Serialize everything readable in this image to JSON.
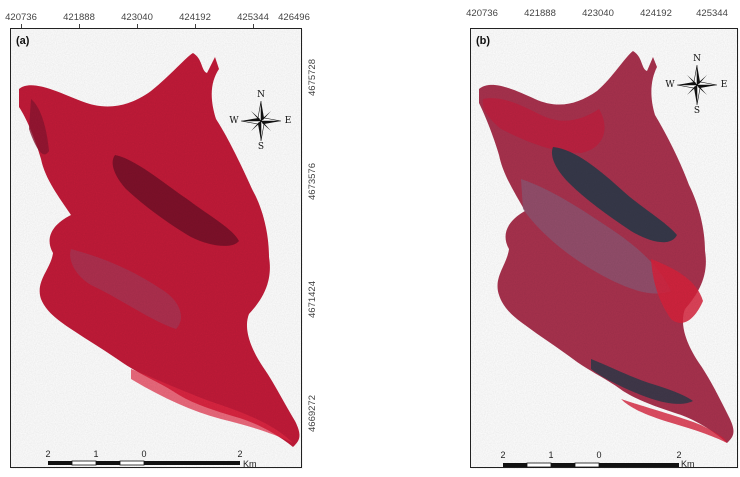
{
  "panels": [
    {
      "label": "(a)",
      "x_ticks": [
        "420736",
        "421888",
        "423040",
        "424192",
        "425344",
        "426496"
      ],
      "y_ticks": [
        "4675728",
        "4673576",
        "4671424",
        "4669272"
      ],
      "scale": {
        "labels": [
          "2",
          "1",
          "0",
          "2"
        ],
        "unit": "Km"
      },
      "compass": {
        "n": "N",
        "s": "S",
        "e": "E",
        "w": "W"
      }
    },
    {
      "label": "(b)",
      "x_ticks": [
        "420736",
        "421888",
        "423040",
        "424192",
        "425344"
      ],
      "scale": {
        "labels": [
          "2",
          "1",
          "0",
          "2"
        ],
        "unit": "Km"
      },
      "compass": {
        "n": "N",
        "s": "S",
        "e": "E",
        "w": "W"
      }
    }
  ],
  "colors": {
    "vegetation_red": "#c81e3a",
    "dark_red": "#7a1028",
    "burn_scar": "#2e3a4a",
    "bare_soil": "#8a5a78"
  }
}
